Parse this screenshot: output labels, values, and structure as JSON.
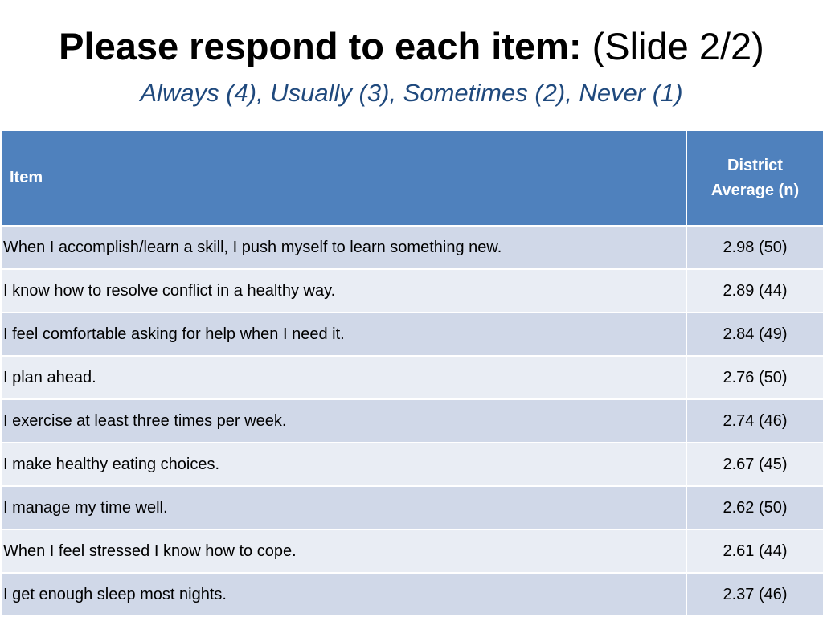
{
  "slide": {
    "title_bold": "Please respond to each item:",
    "title_normal": "(Slide 2/2)",
    "subtitle": "Always (4), Usually (3), Sometimes (2), Never (1)"
  },
  "table": {
    "headers": {
      "item": "Item",
      "average_line1": "District",
      "average_line2": "Average (n)"
    },
    "rows": [
      {
        "item": "When I accomplish/learn a skill, I push myself to learn something new.",
        "average": "2.98 (50)"
      },
      {
        "item": "I know how to resolve conflict in a healthy way.",
        "average": "2.89 (44)"
      },
      {
        "item": "I feel comfortable asking for help when I need it.",
        "average": "2.84 (49)"
      },
      {
        "item": "I plan ahead.",
        "average": "2.76 (50)"
      },
      {
        "item": "I exercise at least three times per week.",
        "average": "2.74 (46)"
      },
      {
        "item": "I make healthy eating choices.",
        "average": "2.67 (45)"
      },
      {
        "item": "I manage my time well.",
        "average": "2.62 (50)"
      },
      {
        "item": "When I feel stressed I know how to cope.",
        "average": "2.61 (44)"
      },
      {
        "item": "I get enough sleep most nights.",
        "average": "2.37 (46)"
      }
    ]
  },
  "colors": {
    "header_fill": "#4f81bd",
    "row_band_odd": "#d0d8e8",
    "row_band_even": "#e9edf4",
    "subtitle_text": "#1f497d"
  }
}
